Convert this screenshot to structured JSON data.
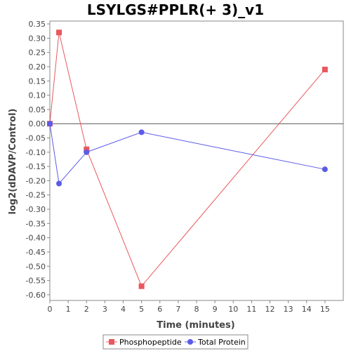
{
  "chart_data": {
    "type": "line",
    "title": "LSYLGS#PPLR(+ 3)_v1",
    "xlabel": "Time (minutes)",
    "ylabel": "log2(dDAVP/Control)",
    "xlim": [
      0,
      16
    ],
    "ylim": [
      -0.62,
      0.36
    ],
    "x_ticks": [
      0,
      1,
      2,
      3,
      4,
      5,
      6,
      7,
      8,
      9,
      10,
      11,
      12,
      13,
      14,
      15
    ],
    "y_ticks": [
      0.35,
      0.3,
      0.25,
      0.2,
      0.15,
      0.1,
      0.05,
      0.0,
      -0.05,
      -0.1,
      -0.15,
      -0.2,
      -0.25,
      -0.3,
      -0.35,
      -0.4,
      -0.45,
      -0.5,
      -0.55,
      -0.6
    ],
    "legend_position": "bottom",
    "series": [
      {
        "name": "Phosphopeptide",
        "color": "#e8585e",
        "marker": "square",
        "x": [
          0,
          0.5,
          2,
          5,
          15
        ],
        "y": [
          0.0,
          0.32,
          -0.09,
          -0.57,
          0.19
        ]
      },
      {
        "name": "Total Protein",
        "color": "#5b5be8",
        "marker": "circle",
        "x": [
          0,
          0.5,
          2,
          5,
          15
        ],
        "y": [
          0.0,
          -0.21,
          -0.1,
          -0.03,
          -0.16
        ]
      }
    ]
  }
}
